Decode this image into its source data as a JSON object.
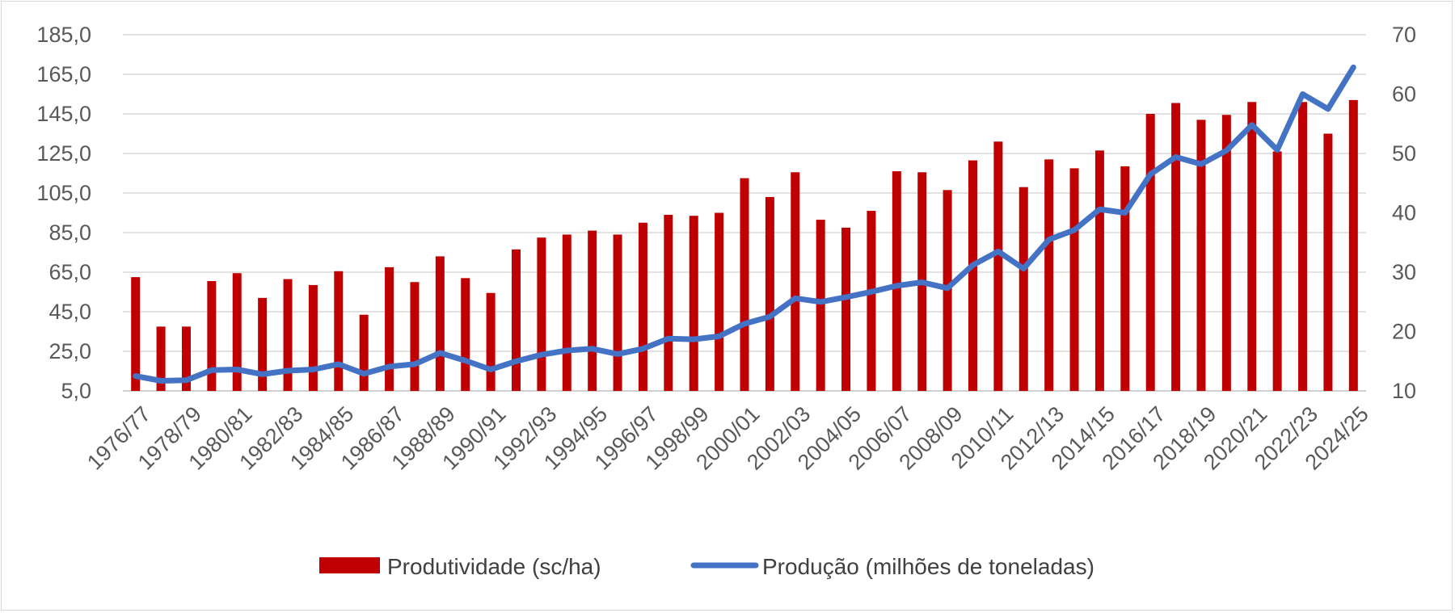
{
  "chart_data": {
    "type": "bar+line",
    "title": "",
    "xlabel": "",
    "ylabel_left": "",
    "ylabel_right": "",
    "categories": [
      "1976/77",
      "1977/78",
      "1978/79",
      "1979/80",
      "1980/81",
      "1981/82",
      "1982/83",
      "1983/84",
      "1984/85",
      "1985/86",
      "1986/87",
      "1987/88",
      "1988/89",
      "1989/90",
      "1990/91",
      "1991/92",
      "1992/93",
      "1993/94",
      "1994/95",
      "1995/96",
      "1996/97",
      "1997/98",
      "1998/99",
      "1999/00",
      "2000/01",
      "2001/02",
      "2002/03",
      "2003/04",
      "2004/05",
      "2005/06",
      "2006/07",
      "2007/08",
      "2008/09",
      "2009/10",
      "2010/11",
      "2011/12",
      "2012/13",
      "2013/14",
      "2014/15",
      "2015/16",
      "2016/17",
      "2017/18",
      "2018/19",
      "2019/20",
      "2020/21",
      "2021/22",
      "2022/23",
      "2023/24",
      "2024/25"
    ],
    "x_tick_labels": [
      "1976/77",
      "1978/79",
      "1980/81",
      "1982/83",
      "1984/85",
      "1986/87",
      "1988/89",
      "1990/91",
      "1992/93",
      "1994/95",
      "1996/97",
      "1998/99",
      "2000/01",
      "2002/03",
      "2004/05",
      "2006/07",
      "2008/09",
      "2010/11",
      "2012/13",
      "2014/15",
      "2016/17",
      "2018/19",
      "2020/21",
      "2022/23",
      "2024/25"
    ],
    "y_left": {
      "min": 5,
      "max": 185,
      "ticks": [
        "185,0",
        "165,0",
        "145,0",
        "125,0",
        "105,0",
        "85,0",
        "65,0",
        "45,0",
        "25,0",
        "5,0"
      ]
    },
    "y_right": {
      "min": 10,
      "max": 70,
      "ticks": [
        "70",
        "60",
        "50",
        "40",
        "30",
        "20",
        "10"
      ]
    },
    "grid": true,
    "legend_position": "bottom",
    "series": [
      {
        "name": "Produtividade (sc/ha)",
        "type": "bar",
        "axis": "left",
        "color": "#c00000",
        "values": [
          62.5,
          37.5,
          37.5,
          60.5,
          64.5,
          52,
          61.5,
          58.5,
          65.5,
          43.5,
          67.5,
          60,
          73,
          62,
          54.5,
          76.5,
          82.5,
          84,
          86,
          84,
          90,
          94,
          93.5,
          95,
          112.5,
          103,
          115.5,
          91.5,
          87.5,
          96,
          116,
          115.5,
          106.5,
          121.5,
          131,
          108,
          122,
          117.5,
          126.5,
          118.5,
          145,
          150.5,
          142,
          144.5,
          151,
          126,
          151,
          135,
          152
        ]
      },
      {
        "name": "Produção (milhões de toneladas)",
        "type": "line",
        "axis": "right",
        "color": "#4472c4",
        "values": [
          12.5,
          11.7,
          11.8,
          13.5,
          13.6,
          12.8,
          13.4,
          13.6,
          14.5,
          12.9,
          14.1,
          14.5,
          16.4,
          15.1,
          13.6,
          15,
          16.1,
          16.8,
          17.1,
          16.2,
          17.1,
          18.8,
          18.7,
          19.2,
          21.3,
          22.5,
          25.6,
          25,
          25.8,
          26.7,
          27.7,
          28.3,
          27.3,
          31.2,
          33.5,
          30.6,
          35.5,
          37.1,
          40.6,
          40,
          46.5,
          49.4,
          48.2,
          50.5,
          54.8,
          50.6,
          60,
          57.5,
          64.5
        ]
      }
    ]
  }
}
